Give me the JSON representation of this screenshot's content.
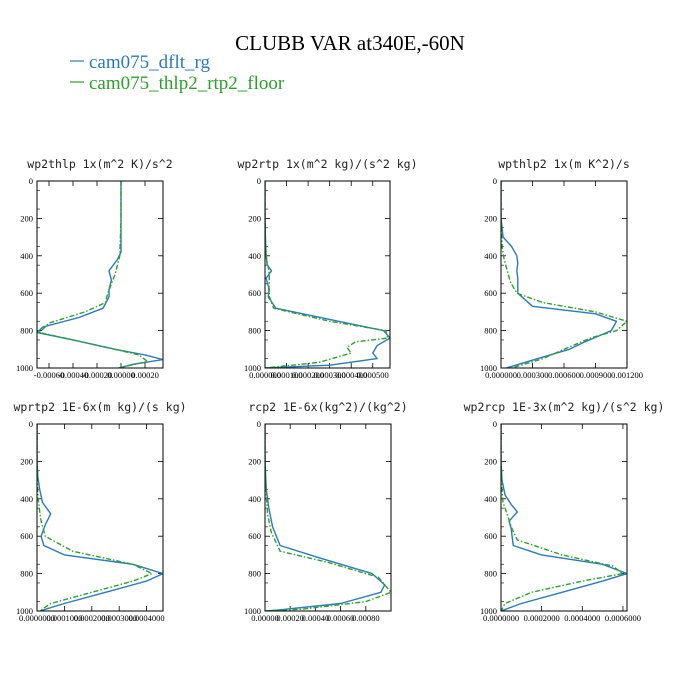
{
  "figure": {
    "title": "CLUBB VAR at340E,-60N",
    "legend": [
      {
        "label": "cam075_dflt_rg",
        "color": "#2b7bb9"
      },
      {
        "label": "cam075_thlp2_rtp2_floor",
        "color": "#2ca02c"
      }
    ]
  },
  "chart_data": [
    {
      "type": "line",
      "title": "wp2thlp  1x(m^2 K)/s^2",
      "xlim": [
        -0.0007,
        0.00035
      ],
      "ylim": [
        1000,
        0
      ],
      "xticks": [
        -0.0006,
        -0.0004,
        -0.0002,
        0,
        0.0002
      ],
      "xticklabels": [
        "-0.00060",
        "-0.00040",
        "-0.00020",
        "0.00000",
        "0.00020"
      ],
      "yticks": [
        0,
        200,
        400,
        600,
        800,
        1000
      ],
      "series": [
        {
          "name": "cam075_dflt_rg",
          "color": "#2b7bb9",
          "dash": false,
          "x": [
            0,
            0,
            0,
            -3e-05,
            -0.0001,
            -8e-05,
            -0.0001,
            -0.0001,
            -0.00015,
            -0.00035,
            -0.00065,
            -0.0007,
            -0.0004,
            -5e-05,
            0.0002,
            0.00035,
            0.0001,
            -2e-05
          ],
          "y": [
            0,
            200,
            380,
            420,
            480,
            530,
            580,
            620,
            680,
            730,
            780,
            810,
            850,
            900,
            930,
            955,
            980,
            1000
          ]
        },
        {
          "name": "cam075_thlp2_rtp2_floor",
          "color": "#2ca02c",
          "dash": true,
          "x": [
            0,
            0,
            -1e-05,
            -3e-05,
            -5e-05,
            -8e-05,
            -0.00011,
            -0.00013,
            -0.0003,
            -0.0006,
            -0.00068,
            -0.0004,
            -5e-05,
            0.00015,
            0.00022,
            8e-05,
            -2e-05
          ],
          "y": [
            0,
            200,
            400,
            450,
            500,
            550,
            600,
            650,
            700,
            760,
            810,
            850,
            900,
            930,
            965,
            985,
            1000
          ]
        }
      ]
    },
    {
      "type": "line",
      "title": "wp2rtp  1x(m^2 kg)/(s^2 kg)",
      "xlim": [
        0,
        0.00058
      ],
      "ylim": [
        1000,
        0
      ],
      "xticks": [
        0,
        0.0001,
        0.0002,
        0.0003,
        0.0004,
        0.0005
      ],
      "xticklabels": [
        "0.000000",
        "0.000100",
        "0.000200",
        "0.000300",
        "0.000400",
        "0.000500"
      ],
      "yticks": [
        0,
        200,
        400,
        600,
        800,
        1000
      ],
      "series": [
        {
          "name": "cam075_dflt_rg",
          "color": "#2b7bb9",
          "dash": false,
          "x": [
            0,
            0,
            2e-06,
            5e-06,
            1e-05,
            3e-05,
            5e-06,
            2e-05,
            1.5e-05,
            5e-05,
            0.0003,
            0.00055,
            0.00058,
            0.00052,
            0.0005,
            0.00052,
            0.0003,
            0
          ],
          "y": [
            0,
            200,
            300,
            400,
            450,
            480,
            520,
            580,
            620,
            680,
            740,
            800,
            840,
            880,
            920,
            950,
            985,
            1000
          ]
        },
        {
          "name": "cam075_thlp2_rtp2_floor",
          "color": "#2ca02c",
          "dash": true,
          "x": [
            0,
            0,
            3e-06,
            8e-06,
            1.5e-05,
            2e-05,
            2e-05,
            1.5e-05,
            4e-05,
            0.0003,
            0.00056,
            0.00057,
            0.00042,
            0.00038,
            0.0004,
            0.00025,
            0
          ],
          "y": [
            0,
            200,
            350,
            420,
            460,
            500,
            550,
            600,
            680,
            750,
            800,
            840,
            860,
            890,
            920,
            970,
            1000
          ]
        }
      ]
    },
    {
      "type": "line",
      "title": "wpthlp2  1x(m K^2)/s",
      "xlim": [
        0,
        0.0012
      ],
      "ylim": [
        1000,
        0
      ],
      "xticks": [
        0,
        0.0003,
        0.0006,
        0.0009,
        0.0012
      ],
      "xticklabels": [
        "0.000000",
        "0.000300",
        "0.000600",
        "0.000900",
        "0.001200"
      ],
      "yticks": [
        0,
        200,
        400,
        600,
        800,
        1000
      ],
      "series": [
        {
          "name": "cam075_dflt_rg",
          "color": "#2b7bb9",
          "dash": false,
          "x": [
            0,
            0,
            2e-05,
            0.0001,
            0.00015,
            0.00016,
            0.00015,
            0.00016,
            0.00016,
            0.0003,
            0.0009,
            0.0011,
            0.00105,
            0.0008,
            0.00065,
            0.00035,
            5e-05
          ],
          "y": [
            0,
            200,
            300,
            350,
            400,
            440,
            480,
            520,
            600,
            670,
            710,
            750,
            800,
            860,
            900,
            950,
            1000
          ]
        },
        {
          "name": "cam075_thlp2_rtp2_floor",
          "color": "#2ca02c",
          "dash": true,
          "x": [
            0,
            0,
            1e-05,
            3e-05,
            6e-05,
            9e-05,
            0.00015,
            0.0004,
            0.0009,
            0.0012,
            0.0011,
            0.00085,
            0.0006,
            0.0004,
            0.0001
          ],
          "y": [
            0,
            200,
            350,
            420,
            480,
            540,
            600,
            650,
            700,
            750,
            800,
            840,
            900,
            950,
            1000
          ]
        }
      ]
    },
    {
      "type": "line",
      "title": "wprtp2  1E-6x(m kg)/(s kg)",
      "xlim": [
        0,
        0.00046
      ],
      "ylim": [
        1000,
        0
      ],
      "xticks": [
        0,
        0.0001,
        0.0002,
        0.0003,
        0.0004
      ],
      "xticklabels": [
        "0.0000000",
        "0.0001000",
        "0.0002000",
        "0.0003000",
        "0.0004000"
      ],
      "yticks": [
        0,
        200,
        400,
        600,
        800,
        1000
      ],
      "series": [
        {
          "name": "cam075_dflt_rg",
          "color": "#2b7bb9",
          "dash": false,
          "x": [
            0,
            0,
            3e-06,
            1e-05,
            2e-05,
            5e-05,
            3e-05,
            1.5e-05,
            2.5e-05,
            0.0001,
            0.00035,
            0.00046,
            0.0004,
            0.00025,
            0.0001,
            1e-05
          ],
          "y": [
            0,
            200,
            280,
            350,
            420,
            480,
            540,
            600,
            650,
            700,
            750,
            800,
            840,
            900,
            960,
            1000
          ]
        },
        {
          "name": "cam075_thlp2_rtp2_floor",
          "color": "#2ca02c",
          "dash": true,
          "x": [
            0,
            0,
            3e-06,
            8e-06,
            1.5e-05,
            3e-05,
            0.00013,
            0.00035,
            0.00042,
            0.00035,
            0.0002,
            5e-05,
            1e-05
          ],
          "y": [
            0,
            200,
            380,
            450,
            520,
            600,
            680,
            750,
            800,
            840,
            900,
            960,
            1000
          ]
        }
      ]
    },
    {
      "type": "line",
      "title": "rcp2  1E-6x(kg^2)/(kg^2)",
      "xlim": [
        0,
        0.001
      ],
      "ylim": [
        1000,
        0
      ],
      "xticks": [
        0,
        0.0002,
        0.0004,
        0.0006,
        0.0008
      ],
      "xticklabels": [
        "0.00000",
        "0.00020",
        "0.00040",
        "0.00060",
        "0.00080"
      ],
      "yticks": [
        0,
        200,
        400,
        600,
        800,
        1000
      ],
      "series": [
        {
          "name": "cam075_dflt_rg",
          "color": "#2b7bb9",
          "dash": false,
          "x": [
            0,
            0,
            1e-05,
            3e-05,
            6e-05,
            0.00012,
            0.00045,
            0.00085,
            0.00095,
            0.00092,
            0.0006,
            0.0001,
            0
          ],
          "y": [
            0,
            200,
            350,
            450,
            550,
            650,
            720,
            800,
            860,
            900,
            960,
            995,
            1000
          ]
        },
        {
          "name": "cam075_thlp2_rtp2_floor",
          "color": "#2ca02c",
          "dash": true,
          "x": [
            0,
            0,
            1e-05,
            2e-05,
            5e-05,
            0.00012,
            0.0005,
            0.0009,
            0.001,
            0.0008,
            0.0003,
            0
          ],
          "y": [
            0,
            200,
            380,
            480,
            580,
            680,
            740,
            820,
            900,
            950,
            990,
            1000
          ]
        }
      ]
    },
    {
      "type": "line",
      "title": "wp2rcp  1E-3x(m^2 kg)/(s^2 kg)",
      "xlim": [
        0,
        0.00062
      ],
      "ylim": [
        1000,
        0
      ],
      "xticks": [
        0,
        0.0002,
        0.0004,
        0.0006
      ],
      "xticklabels": [
        "0.0000000",
        "0.0002000",
        "0.0004000",
        "0.0006000"
      ],
      "yticks": [
        0,
        200,
        400,
        600,
        800,
        1000
      ],
      "series": [
        {
          "name": "cam075_dflt_rg",
          "color": "#2b7bb9",
          "dash": false,
          "x": [
            0,
            0,
            5e-06,
            2e-05,
            5e-05,
            8e-05,
            4e-05,
            5e-05,
            6e-05,
            0.0002,
            0.0005,
            0.00062,
            0.0005,
            0.0003,
            0.0001,
            0
          ],
          "y": [
            0,
            200,
            300,
            380,
            430,
            470,
            520,
            560,
            650,
            700,
            750,
            800,
            840,
            900,
            960,
            1000
          ]
        },
        {
          "name": "cam075_thlp2_rtp2_floor",
          "color": "#2ca02c",
          "dash": true,
          "x": [
            0,
            0,
            5e-06,
            1e-05,
            3e-05,
            5e-05,
            8e-05,
            0.0003,
            0.00055,
            0.0006,
            0.0004,
            0.00015,
            2e-05,
            0
          ],
          "y": [
            0,
            200,
            350,
            420,
            480,
            550,
            620,
            700,
            760,
            800,
            840,
            900,
            960,
            1000
          ]
        }
      ]
    }
  ]
}
